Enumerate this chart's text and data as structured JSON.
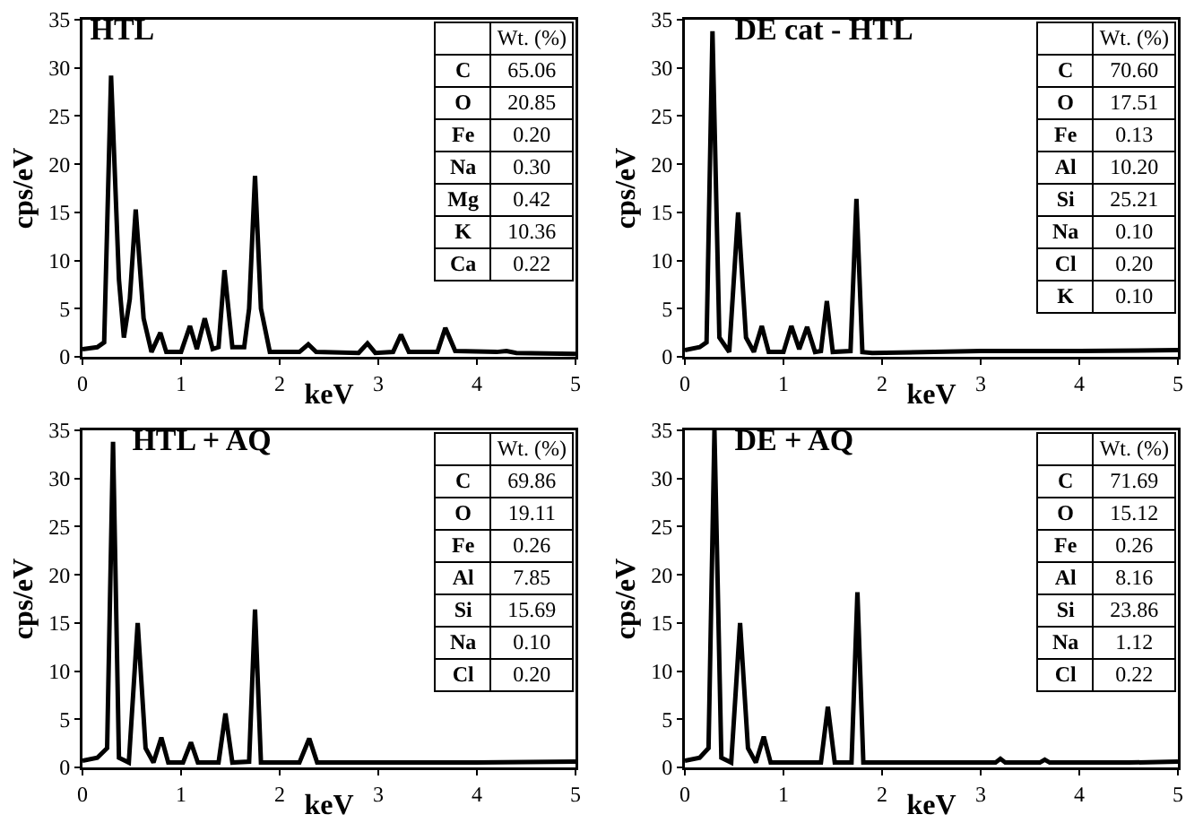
{
  "chart_data": [
    {
      "type": "line",
      "title": "HTL",
      "xlabel": "keV",
      "ylabel": "cps/eV",
      "xlim": [
        0,
        5
      ],
      "ylim": [
        0,
        35
      ],
      "xticks": [
        0,
        1,
        2,
        3,
        4,
        5
      ],
      "yticks": [
        0,
        5,
        10,
        15,
        20,
        25,
        30,
        35
      ],
      "annotations": [
        "Wt. (%)",
        "C",
        "65.06",
        "O",
        "20.85",
        "Fe",
        "0.20",
        "Na",
        "0.30",
        "Mg",
        "0.42",
        "K",
        "10.36",
        "Ca",
        "0.22"
      ],
      "series": [
        {
          "color": "#000000",
          "x": [
            0,
            0.15,
            0.22,
            0.29,
            0.37,
            0.42,
            0.48,
            0.54,
            0.62,
            0.7,
            0.79,
            0.85,
            1.0,
            1.09,
            1.16,
            1.24,
            1.32,
            1.38,
            1.44,
            1.52,
            1.64,
            1.69,
            1.75,
            1.81,
            1.9,
            2.2,
            2.29,
            2.37,
            2.8,
            2.89,
            2.97,
            3.15,
            3.23,
            3.31,
            3.6,
            3.68,
            3.78,
            4.2,
            4.3,
            4.4,
            5
          ],
          "values": [
            0.8,
            1,
            1.5,
            29.2,
            8,
            2,
            6,
            15.3,
            4,
            0.5,
            2.5,
            0.5,
            0.5,
            3.2,
            0.8,
            4,
            0.8,
            1,
            9,
            1,
            1,
            5,
            18.8,
            5,
            0.5,
            0.5,
            1.3,
            0.5,
            0.4,
            1.4,
            0.4,
            0.5,
            2.3,
            0.5,
            0.5,
            3,
            0.6,
            0.5,
            0.6,
            0.4,
            0.3
          ]
        }
      ]
    },
    {
      "type": "line",
      "title": "DE cat - HTL",
      "xlabel": "keV",
      "ylabel": "cps/eV",
      "xlim": [
        0,
        5
      ],
      "ylim": [
        0,
        35
      ],
      "xticks": [
        0,
        1,
        2,
        3,
        4,
        5
      ],
      "yticks": [
        0,
        5,
        10,
        15,
        20,
        25,
        30,
        35
      ],
      "annotations": [
        "Wt. (%)",
        "C",
        "70.60",
        "O",
        "17.51",
        "Fe",
        "0.13",
        "Al",
        "10.20",
        "Si",
        "25.21",
        "Na",
        "0.10",
        "Cl",
        "0.20",
        "K",
        "0.10"
      ],
      "series": [
        {
          "color": "#000000",
          "x": [
            0,
            0.15,
            0.22,
            0.28,
            0.35,
            0.45,
            0.54,
            0.62,
            0.7,
            0.78,
            0.85,
            1.0,
            1.08,
            1.16,
            1.24,
            1.32,
            1.38,
            1.44,
            1.5,
            1.68,
            1.74,
            1.8,
            1.9,
            3,
            4,
            5
          ],
          "values": [
            0.7,
            1,
            1.5,
            33.8,
            2,
            0.5,
            15,
            2,
            0.5,
            3.2,
            0.5,
            0.5,
            3.2,
            0.8,
            3.1,
            0.5,
            0.6,
            5.8,
            0.5,
            0.6,
            16.4,
            0.5,
            0.4,
            0.6,
            0.6,
            0.7
          ]
        }
      ]
    },
    {
      "type": "line",
      "title": "HTL + AQ",
      "xlabel": "keV",
      "ylabel": "cps/eV",
      "xlim": [
        0,
        5
      ],
      "ylim": [
        0,
        35
      ],
      "xticks": [
        0,
        1,
        2,
        3,
        4,
        5
      ],
      "yticks": [
        0,
        5,
        10,
        15,
        20,
        25,
        30,
        35
      ],
      "annotations": [
        "Wt. (%)",
        "C",
        "69.86",
        "O",
        "19.11",
        "Fe",
        "0.26",
        "Al",
        "7.85",
        "Si",
        "15.69",
        "Na",
        "0.10",
        "Cl",
        "0.20"
      ],
      "series": [
        {
          "color": "#000000",
          "x": [
            0,
            0.15,
            0.25,
            0.31,
            0.37,
            0.47,
            0.56,
            0.64,
            0.72,
            0.8,
            0.87,
            1.02,
            1.1,
            1.17,
            1.38,
            1.45,
            1.52,
            1.69,
            1.75,
            1.81,
            2.2,
            2.3,
            2.38,
            3,
            4,
            5
          ],
          "values": [
            0.7,
            1,
            2,
            33.8,
            1,
            0.5,
            15,
            2,
            0.5,
            3.1,
            0.5,
            0.5,
            2.6,
            0.5,
            0.5,
            5.6,
            0.5,
            0.6,
            16.4,
            0.5,
            0.5,
            3,
            0.5,
            0.5,
            0.5,
            0.6
          ]
        }
      ]
    },
    {
      "type": "line",
      "title": "DE + AQ",
      "xlabel": "keV",
      "ylabel": "cps/eV",
      "xlim": [
        0,
        5
      ],
      "ylim": [
        0,
        35
      ],
      "xticks": [
        0,
        1,
        2,
        3,
        4,
        5
      ],
      "yticks": [
        0,
        5,
        10,
        15,
        20,
        25,
        30,
        35
      ],
      "annotations": [
        "Wt. (%)",
        "C",
        "71.69",
        "O",
        "15.12",
        "Fe",
        "0.26",
        "Al",
        "8.16",
        "Si",
        "23.86",
        "Na",
        "1.12",
        "Cl",
        "0.22"
      ],
      "series": [
        {
          "color": "#000000",
          "x": [
            0,
            0.15,
            0.24,
            0.3,
            0.37,
            0.47,
            0.56,
            0.64,
            0.72,
            0.8,
            0.87,
            1.0,
            1.38,
            1.45,
            1.52,
            1.69,
            1.75,
            1.81,
            2.0,
            3.15,
            3.2,
            3.25,
            3.6,
            3.65,
            3.7,
            4.5,
            5
          ],
          "values": [
            0.7,
            1,
            2,
            35,
            1,
            0.5,
            15,
            2,
            0.5,
            3.2,
            0.5,
            0.5,
            0.5,
            6.3,
            0.5,
            0.5,
            18.2,
            0.5,
            0.5,
            0.5,
            0.9,
            0.5,
            0.5,
            0.8,
            0.5,
            0.5,
            0.6
          ]
        }
      ]
    }
  ]
}
